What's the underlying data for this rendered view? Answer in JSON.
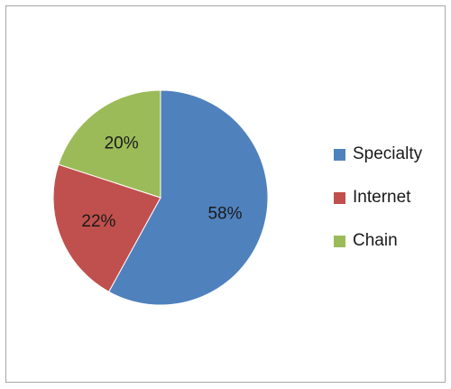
{
  "chart_data": {
    "type": "pie",
    "title": "",
    "legend_position": "right",
    "slices": [
      {
        "name": "Specialty",
        "value": 58,
        "label": "58%",
        "color": "#4f81bd"
      },
      {
        "name": "Internet",
        "value": 22,
        "label": "22%",
        "color": "#c0504d"
      },
      {
        "name": "Chain",
        "value": 20,
        "label": "20%",
        "color": "#9bbb59"
      }
    ]
  }
}
